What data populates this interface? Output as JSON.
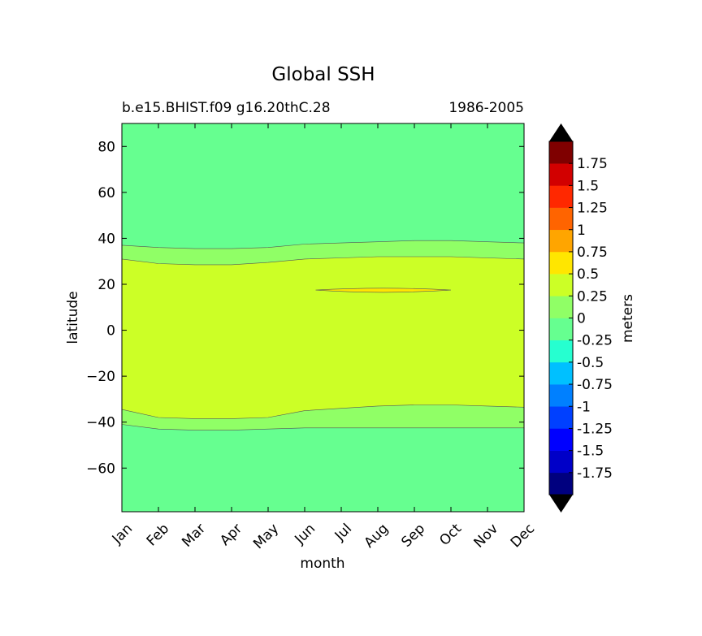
{
  "chart_data": {
    "type": "heatmap",
    "subtype": "filled-contour",
    "title": "Global SSH",
    "subtitle_left": "b.e15.BHIST.f09 g16.20thC.28",
    "subtitle_right": "1986-2005",
    "xlabel": "month",
    "ylabel": "latitude",
    "x_categories": [
      "Jan",
      "Feb",
      "Mar",
      "Apr",
      "May",
      "Jun",
      "Jul",
      "Aug",
      "Sep",
      "Oct",
      "Nov",
      "Dec"
    ],
    "xlim": [
      0,
      11
    ],
    "ylim": [
      -79,
      90
    ],
    "y_ticks": [
      80,
      60,
      40,
      20,
      0,
      -20,
      -40,
      -60
    ],
    "y_tick_labels": [
      "80",
      "60",
      "40",
      "20",
      "0",
      "−20",
      "−40",
      "−60"
    ],
    "colorbar": {
      "label": "meters",
      "levels": [
        -2.0,
        -1.75,
        -1.5,
        -1.25,
        -1.0,
        -0.75,
        -0.5,
        -0.25,
        0,
        0.25,
        0.5,
        0.75,
        1.0,
        1.25,
        1.5,
        1.75,
        2.0
      ],
      "tick_labels": [
        "-1.75",
        "-1.5",
        "-1.25",
        "-1",
        "-0.75",
        "-0.5",
        "-0.25",
        "0",
        "0.25",
        "0.5",
        "0.75",
        "1",
        "1.25",
        "1.5",
        "1.75"
      ],
      "colors": [
        "#00007f",
        "#0000c8",
        "#0000ff",
        "#0040ff",
        "#0080ff",
        "#00c0ff",
        "#26ffd0",
        "#66ff90",
        "#90ff66",
        "#ccff26",
        "#ffe600",
        "#ffa500",
        "#ff6400",
        "#ff2800",
        "#d20000",
        "#7f0000"
      ],
      "extend_colors": [
        "#000000",
        "#000000"
      ]
    },
    "contour_lines": {
      "month_index": [
        0,
        1,
        2,
        3,
        4,
        5,
        6,
        7,
        8,
        9,
        10,
        11
      ],
      "north_0": [
        37,
        36,
        35.5,
        35.5,
        36,
        37.5,
        38,
        38.5,
        39,
        39,
        38.5,
        38
      ],
      "north_025": [
        31,
        29,
        28.5,
        28.5,
        29.5,
        31,
        31.5,
        32,
        32,
        32,
        31.5,
        31
      ],
      "south_025": [
        -34.5,
        -38,
        -38.5,
        -38.5,
        -38,
        -35,
        -34,
        -33,
        -32.5,
        -32.5,
        -33,
        -33.5
      ],
      "south_0": [
        -41,
        -43,
        -43.5,
        -43.5,
        -43,
        -42.5,
        -42.5,
        -42.5,
        -42.5,
        -42.5,
        -42.5,
        -42.5
      ],
      "region_05": {
        "lat": 17.5,
        "month_from": 5.3,
        "month_to": 9.0,
        "half_width_lat": 0.8
      }
    }
  }
}
